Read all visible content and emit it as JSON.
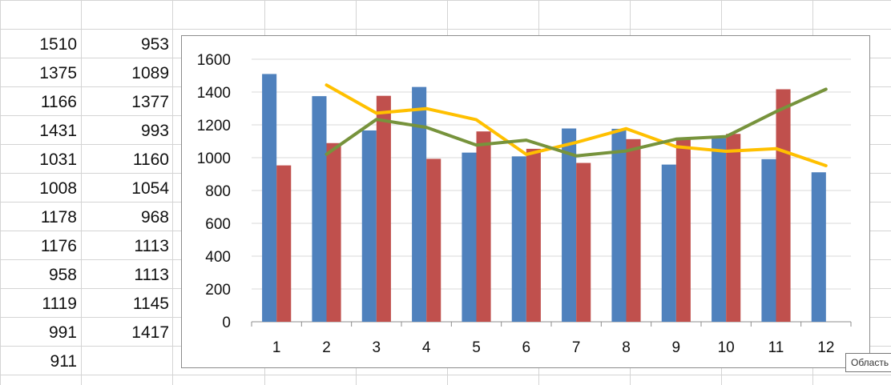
{
  "sheet": {
    "column_a": [
      "1510",
      "1375",
      "1166",
      "1431",
      "1031",
      "1008",
      "1178",
      "1176",
      "958",
      "1119",
      "991",
      "911"
    ],
    "column_b": [
      "953",
      "1089",
      "1377",
      "993",
      "1160",
      "1054",
      "968",
      "1113",
      "1113",
      "1145",
      "1417"
    ]
  },
  "tooltip": {
    "text": "Область д"
  },
  "colors": {
    "series1": "#4f81bd",
    "series2": "#c0504d",
    "trend1": "#ffc000",
    "trend2": "#77933c",
    "axis": "#8c8c8c",
    "gridline": "#d9d9d9"
  },
  "chart_data": {
    "type": "bar",
    "categories": [
      "1",
      "2",
      "3",
      "4",
      "5",
      "6",
      "7",
      "8",
      "9",
      "10",
      "11",
      "12"
    ],
    "series": [
      {
        "type": "bar",
        "values": [
          1510,
          1375,
          1166,
          1431,
          1031,
          1008,
          1178,
          1176,
          958,
          1119,
          991,
          911
        ]
      },
      {
        "type": "bar",
        "values": [
          953,
          1089,
          1377,
          993,
          1160,
          1054,
          968,
          1113,
          1113,
          1145,
          1417,
          null
        ]
      },
      {
        "type": "line",
        "values": [
          null,
          1443,
          1271,
          1299,
          1231,
          1020,
          1093,
          1177,
          1067,
          1039,
          1055,
          951
        ]
      },
      {
        "type": "line",
        "values": [
          null,
          1021,
          1233,
          1185,
          1077,
          1107,
          1011,
          1041,
          1113,
          1129,
          1281,
          1417
        ]
      }
    ],
    "yticks": [
      "0",
      "200",
      "400",
      "600",
      "800",
      "1000",
      "1200",
      "1400",
      "1600"
    ],
    "ylim": [
      0,
      1600
    ],
    "grid": true,
    "legend": "none",
    "title": "",
    "xlabel": "",
    "ylabel": ""
  }
}
